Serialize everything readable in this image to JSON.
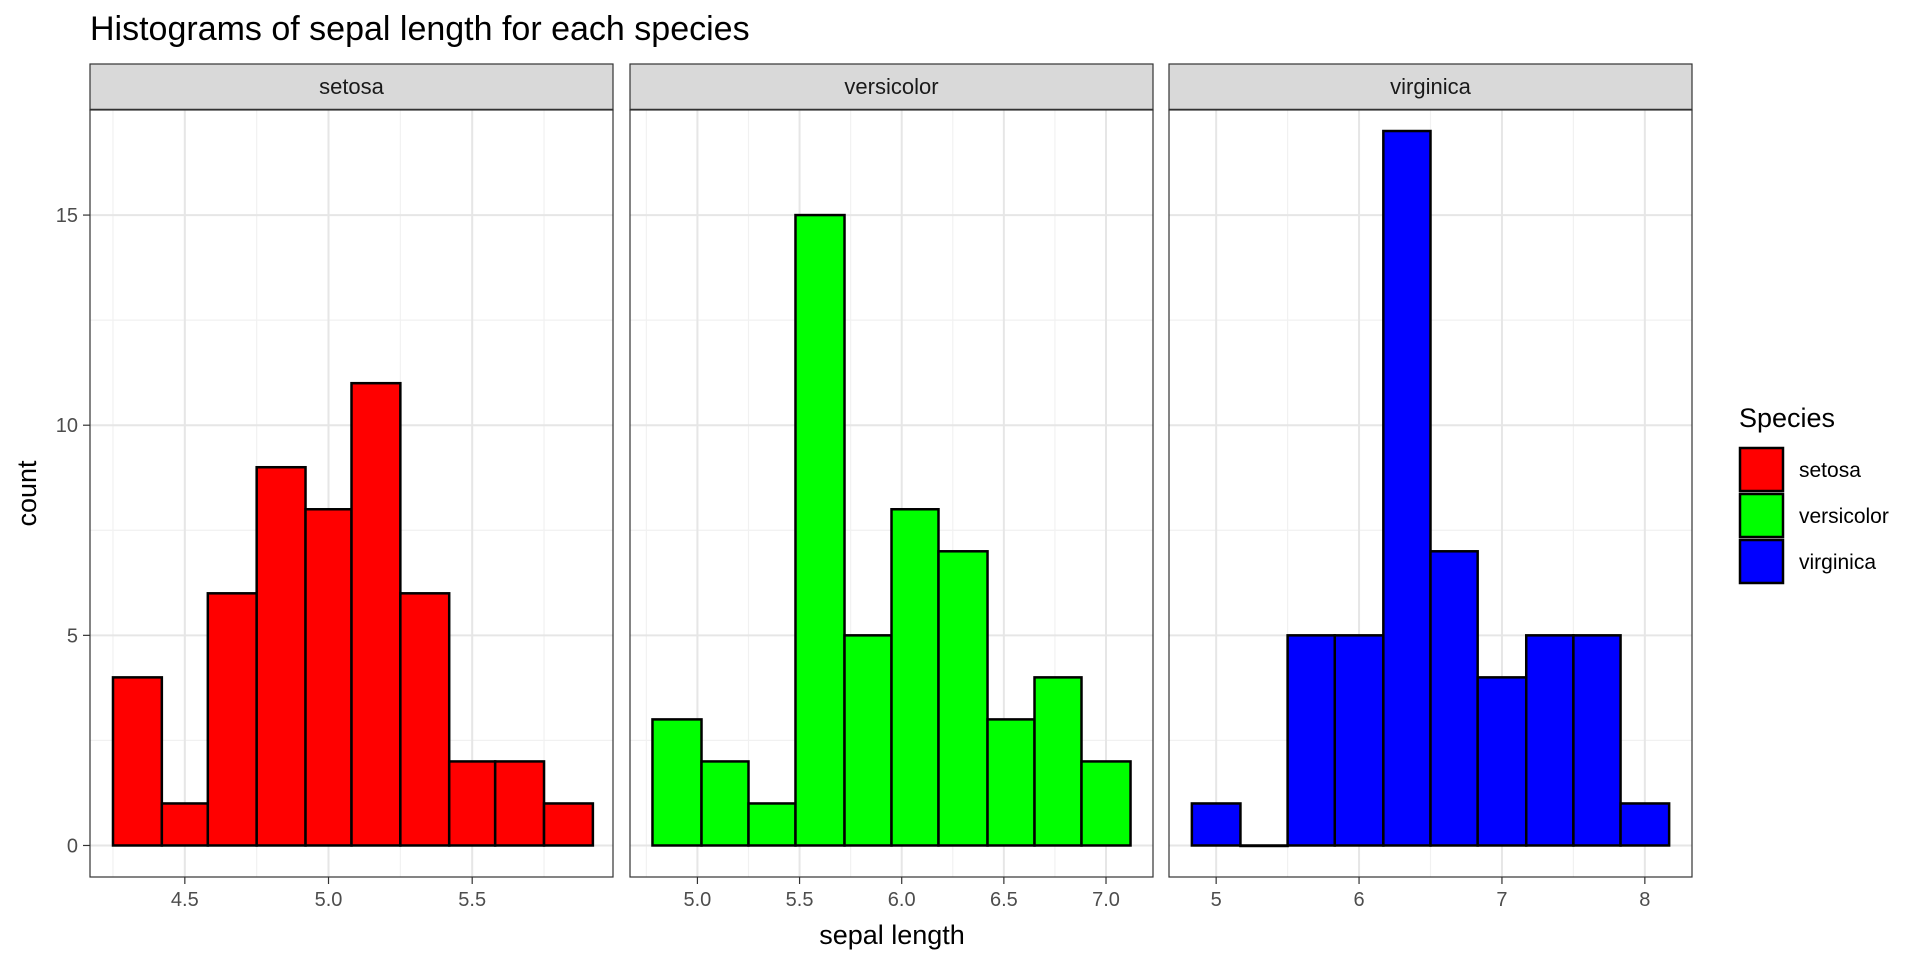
{
  "chart_data": {
    "type": "bar",
    "title": "Histograms of sepal length for each species",
    "xlabel": "sepal length",
    "ylabel": "count",
    "ylim": [
      -0.75,
      17.5
    ],
    "y_ticks": [
      0,
      5,
      10,
      15
    ],
    "grid": true,
    "legend": {
      "title": "Species",
      "position": "right",
      "entries": [
        {
          "label": "setosa",
          "color": "#ff0000"
        },
        {
          "label": "versicolor",
          "color": "#00ff00"
        },
        {
          "label": "virginica",
          "color": "#0000ff"
        }
      ]
    },
    "facets": [
      {
        "name": "setosa",
        "color": "#ff0000",
        "xlim": [
          4.17,
          5.99
        ],
        "x_ticks": [
          4.5,
          5.0,
          5.5
        ],
        "x_tick_labels": [
          "4.5",
          "5.0",
          "5.5"
        ],
        "bin_edges": [
          4.25,
          4.42,
          4.58,
          4.75,
          4.92,
          5.08,
          5.25,
          5.42,
          5.58,
          5.75,
          5.92
        ],
        "counts": [
          4,
          1,
          6,
          9,
          8,
          11,
          6,
          2,
          2,
          1
        ]
      },
      {
        "name": "versicolor",
        "color": "#00ff00",
        "xlim": [
          4.67,
          7.23
        ],
        "x_ticks": [
          5.0,
          5.5,
          6.0,
          6.5,
          7.0
        ],
        "x_tick_labels": [
          "5.0",
          "5.5",
          "6.0",
          "6.5",
          "7.0"
        ],
        "bin_edges": [
          4.78,
          5.02,
          5.25,
          5.48,
          5.72,
          5.95,
          6.18,
          6.42,
          6.65,
          6.88,
          7.12
        ],
        "counts": [
          3,
          2,
          1,
          15,
          5,
          8,
          7,
          3,
          4,
          2
        ]
      },
      {
        "name": "virginica",
        "color": "#0000ff",
        "xlim": [
          4.67,
          8.33
        ],
        "x_ticks": [
          5,
          6,
          7,
          8
        ],
        "x_tick_labels": [
          "5",
          "6",
          "7",
          "8"
        ],
        "bin_edges": [
          4.83,
          5.17,
          5.5,
          5.83,
          6.17,
          6.5,
          6.83,
          7.17,
          7.5,
          7.83,
          8.17
        ],
        "counts": [
          1,
          0,
          5,
          5,
          17,
          7,
          4,
          5,
          5,
          1
        ]
      }
    ]
  }
}
